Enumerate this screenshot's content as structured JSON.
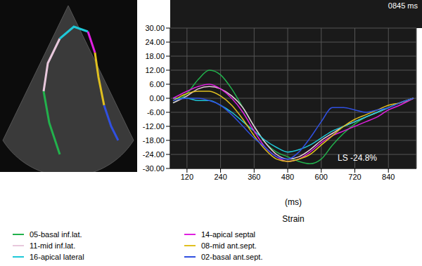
{
  "chart_data": {
    "type": "line",
    "title": "Strain",
    "x_label": "(ms)",
    "annotations": [
      "0845 ms",
      "LS -24.8%"
    ],
    "xlim": [
      60,
      940
    ],
    "xticks": [
      120,
      240,
      360,
      480,
      600,
      720,
      840
    ],
    "ylim": [
      -30,
      30
    ],
    "yticks": [
      {
        "value": -30,
        "label": "-30.00"
      },
      {
        "value": -24,
        "label": "-24.00"
      },
      {
        "value": -18,
        "label": "-18.00"
      },
      {
        "value": -12,
        "label": "-12.00"
      },
      {
        "value": -6,
        "label": "-6.00"
      },
      {
        "value": 0,
        "label": "0.00"
      },
      {
        "value": 6,
        "label": "6.00"
      },
      {
        "value": 12,
        "label": "12.00"
      },
      {
        "value": 18,
        "label": "18.00"
      },
      {
        "value": 24,
        "label": "24.00"
      },
      {
        "value": 30,
        "label": "30.00"
      }
    ],
    "grid": true,
    "legend": "bottom",
    "x": [
      70,
      120,
      160,
      200,
      240,
      280,
      320,
      360,
      400,
      440,
      480,
      520,
      560,
      600,
      640,
      680,
      720,
      760,
      800,
      840,
      880,
      930
    ],
    "series": [
      {
        "name": "05-basal inf.lat.",
        "color": "#22b14c",
        "values": [
          -2,
          2,
          8,
          12,
          10,
          4,
          -4,
          -12,
          -19,
          -23,
          -25,
          -27,
          -28,
          -26,
          -20,
          -15,
          -11,
          -8,
          -6,
          -4,
          -2,
          0
        ]
      },
      {
        "name": "11-mid inf.lat.",
        "color": "#e8c8dc",
        "values": [
          -2,
          1,
          4,
          5,
          4,
          1,
          -4,
          -12,
          -19,
          -24,
          -26,
          -25,
          -22,
          -18,
          -15,
          -12,
          -10,
          -8,
          -6,
          -4,
          -2,
          0
        ]
      },
      {
        "name": "16-apical lateral",
        "color": "#1ec8d8",
        "values": [
          0,
          0,
          -1,
          -1,
          -3,
          -6,
          -10,
          -14,
          -18,
          -21,
          -23,
          -22,
          -20,
          -17,
          -14,
          -12,
          -10,
          -8,
          -6,
          -4,
          -2,
          0
        ]
      },
      {
        "name": "14-apical septal",
        "color": "#e020e0",
        "values": [
          0,
          3,
          5,
          6,
          4,
          0,
          -6,
          -14,
          -21,
          -25,
          -27,
          -26,
          -23,
          -19,
          -16,
          -14,
          -12,
          -10,
          -8,
          -5,
          -3,
          0
        ]
      },
      {
        "name": "08-mid ant.sept.",
        "color": "#e0c020",
        "values": [
          -1,
          2,
          3,
          3,
          1,
          -3,
          -9,
          -16,
          -22,
          -26,
          -27,
          -26,
          -24,
          -20,
          -16,
          -12,
          -9,
          -7,
          -5,
          -3,
          -2,
          0
        ]
      },
      {
        "name": "02-basal ant.sept.",
        "color": "#3050e0",
        "values": [
          -1,
          0,
          0,
          -1,
          -3,
          -7,
          -12,
          -17,
          -21,
          -25,
          -26,
          -23,
          -17,
          -10,
          -4,
          -4,
          -5,
          -6,
          -5,
          -4,
          -2,
          0
        ]
      }
    ]
  }
}
